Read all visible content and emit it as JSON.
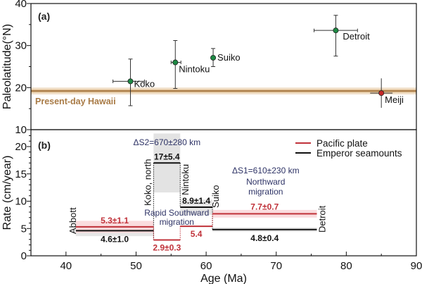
{
  "chart_data": [
    {
      "type": "scatter",
      "panel_label": "(a)",
      "xlabel": "Age (Ma)",
      "ylabel": "Paleolatitude(°N)",
      "xlim": [
        35,
        90
      ],
      "ylim": [
        10,
        40
      ],
      "yticks": [
        "10",
        "20",
        "30",
        "40"
      ],
      "reference_line": {
        "label": "Present-day Hawaii",
        "y": 19.2,
        "color": "#a87a45"
      },
      "points": [
        {
          "name": "Koko",
          "x": 49.2,
          "y": 21.5,
          "xerr": [
            46.7,
            51.2
          ],
          "yerr": [
            15.7,
            26.8
          ],
          "color": "#1e8a44"
        },
        {
          "name": "Nintoku",
          "x": 55.6,
          "y": 26.0,
          "xerr": [
            55.0,
            56.4
          ],
          "yerr": [
            19.8,
            31.2
          ],
          "color": "#1e8a44"
        },
        {
          "name": "Suiko",
          "x": 61.0,
          "y": 27.1,
          "xerr": [
            61.0,
            61.0
          ],
          "yerr": [
            25.0,
            29.3
          ],
          "color": "#1e8a44"
        },
        {
          "name": "Detroit",
          "x": 78.5,
          "y": 33.6,
          "xerr": [
            75.4,
            81.6
          ],
          "yerr": [
            27.5,
            37.2
          ],
          "color": "#1e8a44"
        },
        {
          "name": "Meiji",
          "x": 85.0,
          "y": 18.7,
          "xerr": [
            83.4,
            86.6
          ],
          "yerr": [
            15.2,
            22.2
          ],
          "color": "#c62828"
        }
      ]
    },
    {
      "type": "line",
      "panel_label": "(b)",
      "xlabel": "Age (Ma)",
      "ylabel": "Rate (cm/year)",
      "xlim": [
        35,
        90
      ],
      "ylim": [
        0,
        22
      ],
      "xticks": [
        "40",
        "50",
        "60",
        "70",
        "80",
        "90"
      ],
      "yticks": [
        "0",
        "5",
        "10",
        "15",
        "20"
      ],
      "legend": {
        "placement": "top-right",
        "entries": [
          {
            "label": "Pacific plate",
            "color": "#c0323a"
          },
          {
            "label": "Emperor seamounts",
            "color": "#111111"
          }
        ]
      },
      "boundaries": [
        {
          "label": "Abbott",
          "x": 41.4
        },
        {
          "label": "Koko, north",
          "x": 52.5
        },
        {
          "label": "Nintoku",
          "x": 56.3
        },
        {
          "label": "Suiko",
          "x": 60.9
        },
        {
          "label": "Detroit",
          "x": 75.8
        }
      ],
      "series": [
        {
          "name": "Pacific plate",
          "segments": [
            {
              "x0": 41.4,
              "x1": 52.5,
              "value": 5.3,
              "err": 1.1,
              "text": "5.3±1.1"
            },
            {
              "x0": 52.5,
              "x1": 56.3,
              "value": 2.9,
              "err": 0.3,
              "text": "2.9±0.3"
            },
            {
              "x0": 56.3,
              "x1": 60.9,
              "value": 5.4,
              "err": 0,
              "text": "5.4"
            },
            {
              "x0": 60.9,
              "x1": 75.8,
              "value": 7.7,
              "err": 0.7,
              "text": "7.7±0.7"
            }
          ]
        },
        {
          "name": "Emperor seamounts",
          "segments": [
            {
              "x0": 41.4,
              "x1": 52.5,
              "value": 4.6,
              "err": 1.0,
              "text": "4.6±1.0"
            },
            {
              "x0": 52.5,
              "x1": 56.3,
              "value": 17,
              "err": 5.4,
              "text": "17±5.4"
            },
            {
              "x0": 56.3,
              "x1": 60.9,
              "value": 8.9,
              "err": 1.4,
              "text": "8.9±1.4"
            },
            {
              "x0": 60.9,
              "x1": 75.8,
              "value": 4.8,
              "err": 0.4,
              "text": "4.8±0.4"
            }
          ]
        }
      ],
      "annotations": {
        "ds2": "ΔS2=670±280 km",
        "ds1": "ΔS1=610±230 km",
        "rapid1": "Rapid Southward",
        "rapid2": "migration",
        "north1": "Northward",
        "north2": "migration"
      }
    }
  ]
}
